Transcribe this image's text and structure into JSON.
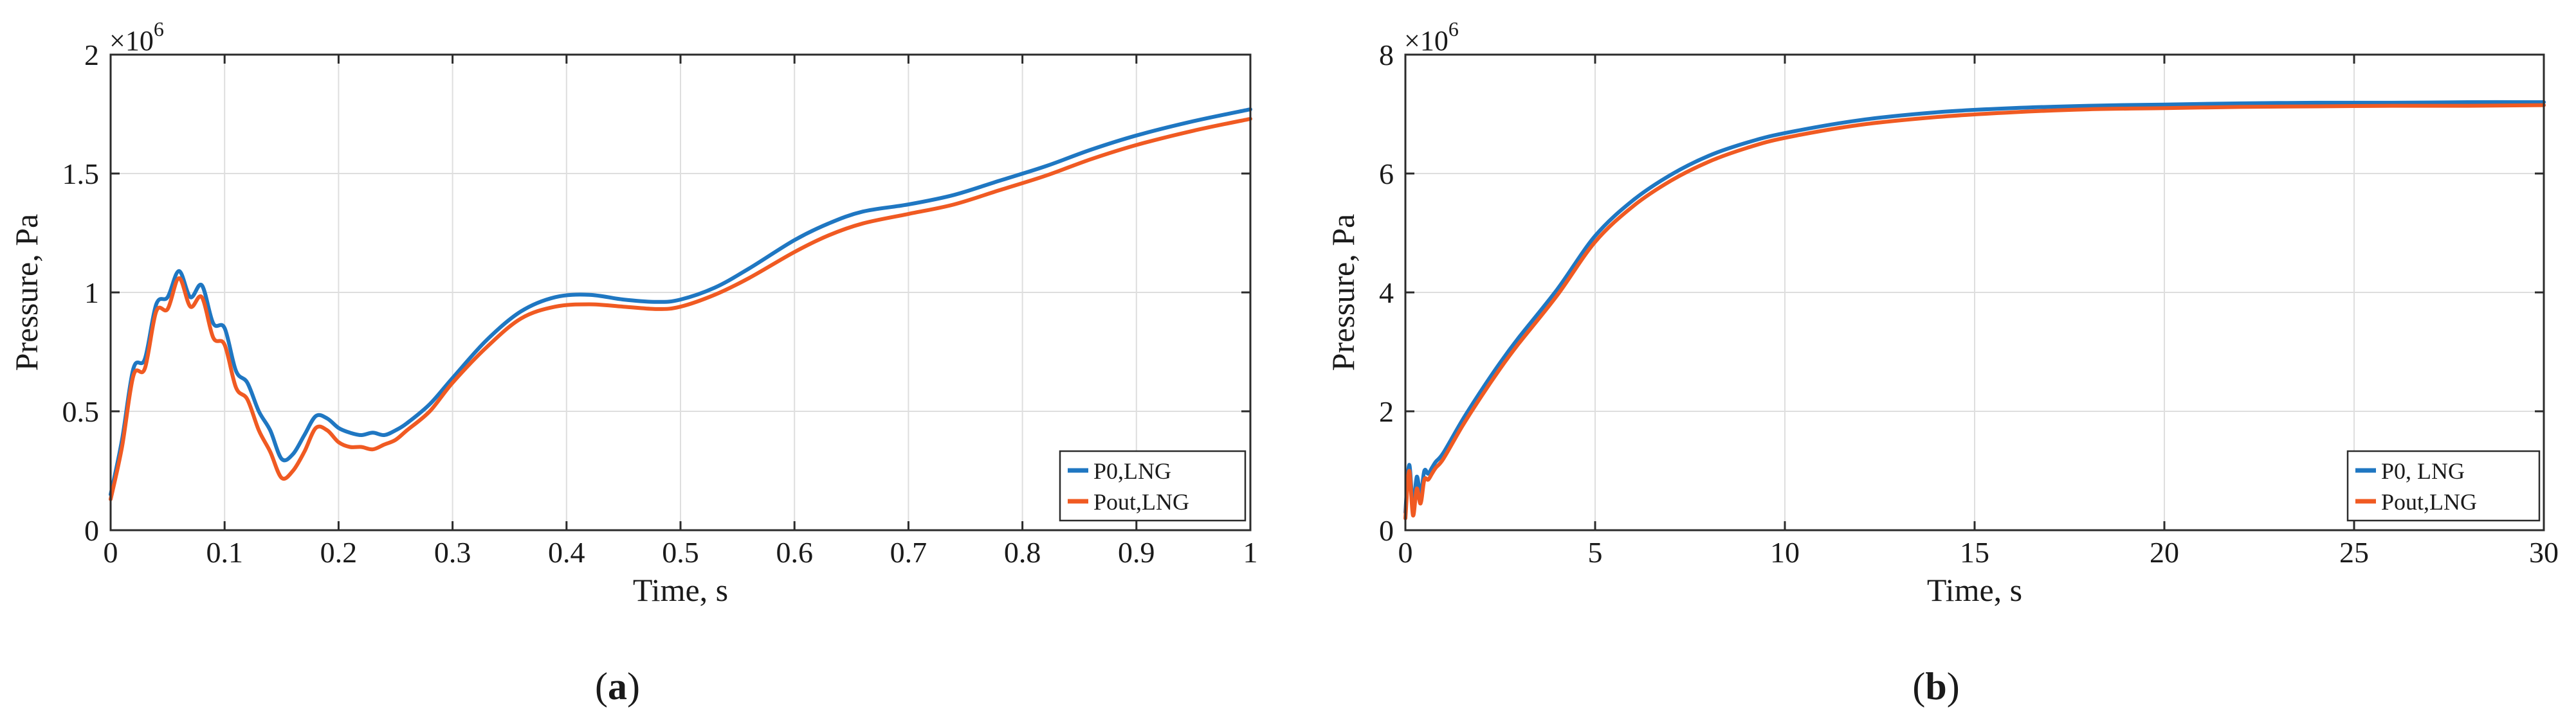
{
  "colors": {
    "series_blue": "#1f77c2",
    "series_orange": "#f05a22",
    "grid": "#dedede"
  },
  "chart_data": [
    {
      "type": "line",
      "panel": "a",
      "caption": {
        "open": "(",
        "letter": "a",
        "close": ")"
      },
      "xlabel": "Time, s",
      "ylabel": "Pressure, Pa",
      "exponent": {
        "base": "×10",
        "power": "6"
      },
      "xlim": [
        0,
        1
      ],
      "ylim": [
        0,
        2
      ],
      "xticks": [
        0,
        0.1,
        0.2,
        0.3,
        0.4,
        0.5,
        0.6,
        0.7,
        0.8,
        0.9,
        1
      ],
      "xtick_labels": [
        "0",
        "0.1",
        "0.2",
        "0.3",
        "0.4",
        "0.5",
        "0.6",
        "0.7",
        "0.8",
        "0.9",
        "1"
      ],
      "yticks": [
        0,
        0.5,
        1,
        1.5,
        2
      ],
      "ytick_labels": [
        "0",
        "0.5",
        "1",
        "1.5",
        "2"
      ],
      "grid": true,
      "legend_position": "bottom-right",
      "series": [
        {
          "name": "P0,LNG",
          "color": "#1f77c2",
          "x": [
            0,
            0.01,
            0.02,
            0.03,
            0.04,
            0.05,
            0.06,
            0.07,
            0.08,
            0.09,
            0.1,
            0.11,
            0.12,
            0.13,
            0.14,
            0.15,
            0.16,
            0.17,
            0.18,
            0.19,
            0.2,
            0.21,
            0.22,
            0.23,
            0.24,
            0.25,
            0.26,
            0.28,
            0.3,
            0.33,
            0.36,
            0.39,
            0.42,
            0.45,
            0.48,
            0.5,
            0.53,
            0.56,
            0.6,
            0.63,
            0.66,
            0.7,
            0.74,
            0.78,
            0.82,
            0.86,
            0.9,
            0.95,
            1.0
          ],
          "y": [
            0.15,
            0.38,
            0.68,
            0.72,
            0.95,
            0.98,
            1.09,
            0.98,
            1.03,
            0.87,
            0.85,
            0.67,
            0.62,
            0.5,
            0.42,
            0.3,
            0.32,
            0.4,
            0.48,
            0.47,
            0.43,
            0.41,
            0.4,
            0.41,
            0.4,
            0.42,
            0.45,
            0.53,
            0.64,
            0.8,
            0.92,
            0.98,
            0.99,
            0.97,
            0.96,
            0.97,
            1.02,
            1.1,
            1.22,
            1.29,
            1.34,
            1.37,
            1.41,
            1.47,
            1.53,
            1.6,
            1.66,
            1.72,
            1.77
          ]
        },
        {
          "name": "Pout,LNG",
          "color": "#f05a22",
          "x": [
            0,
            0.01,
            0.02,
            0.03,
            0.04,
            0.05,
            0.06,
            0.07,
            0.08,
            0.09,
            0.1,
            0.11,
            0.12,
            0.13,
            0.14,
            0.15,
            0.16,
            0.17,
            0.18,
            0.19,
            0.2,
            0.21,
            0.22,
            0.23,
            0.24,
            0.25,
            0.26,
            0.28,
            0.3,
            0.33,
            0.36,
            0.39,
            0.42,
            0.45,
            0.48,
            0.5,
            0.53,
            0.56,
            0.6,
            0.63,
            0.66,
            0.7,
            0.74,
            0.78,
            0.82,
            0.86,
            0.9,
            0.95,
            1.0
          ],
          "y": [
            0.13,
            0.35,
            0.65,
            0.68,
            0.92,
            0.93,
            1.06,
            0.94,
            0.98,
            0.81,
            0.78,
            0.6,
            0.55,
            0.42,
            0.33,
            0.22,
            0.25,
            0.33,
            0.43,
            0.42,
            0.37,
            0.35,
            0.35,
            0.34,
            0.36,
            0.38,
            0.42,
            0.5,
            0.62,
            0.77,
            0.89,
            0.94,
            0.95,
            0.94,
            0.93,
            0.94,
            0.99,
            1.06,
            1.17,
            1.24,
            1.29,
            1.33,
            1.37,
            1.43,
            1.49,
            1.56,
            1.62,
            1.68,
            1.73
          ]
        }
      ]
    },
    {
      "type": "line",
      "panel": "b",
      "caption": {
        "open": "(",
        "letter": "b",
        "close": ")"
      },
      "xlabel": "Time, s",
      "ylabel": "Pressure, Pa",
      "exponent": {
        "base": "×10",
        "power": "6"
      },
      "xlim": [
        0,
        30
      ],
      "ylim": [
        0,
        8
      ],
      "xticks": [
        0,
        5,
        10,
        15,
        20,
        25,
        30
      ],
      "xtick_labels": [
        "0",
        "5",
        "10",
        "15",
        "20",
        "25",
        "30"
      ],
      "yticks": [
        0,
        2,
        4,
        6,
        8
      ],
      "ytick_labels": [
        "0",
        "2",
        "4",
        "6",
        "8"
      ],
      "grid": true,
      "legend_position": "bottom-right",
      "series": [
        {
          "name": "P0, LNG",
          "color": "#1f77c2",
          "x": [
            0,
            0.1,
            0.2,
            0.3,
            0.4,
            0.5,
            0.6,
            0.7,
            0.8,
            1,
            1.5,
            2,
            2.5,
            3,
            4,
            5,
            6,
            7,
            8,
            9,
            10,
            12,
            14,
            16,
            18,
            20,
            22,
            24,
            26,
            28,
            30
          ],
          "y": [
            0.3,
            1.1,
            0.4,
            0.9,
            0.6,
            1.0,
            0.95,
            1.05,
            1.15,
            1.3,
            1.85,
            2.35,
            2.82,
            3.25,
            4.05,
            4.95,
            5.55,
            5.98,
            6.3,
            6.52,
            6.68,
            6.9,
            7.03,
            7.1,
            7.14,
            7.16,
            7.18,
            7.19,
            7.19,
            7.2,
            7.2
          ]
        },
        {
          "name": "Pout,LNG",
          "color": "#f05a22",
          "x": [
            0,
            0.1,
            0.2,
            0.3,
            0.4,
            0.5,
            0.6,
            0.7,
            0.8,
            1,
            1.5,
            2,
            2.5,
            3,
            4,
            5,
            6,
            7,
            8,
            9,
            10,
            12,
            14,
            16,
            18,
            20,
            22,
            24,
            26,
            28,
            30
          ],
          "y": [
            0.2,
            1.0,
            0.25,
            0.7,
            0.45,
            0.85,
            0.85,
            0.95,
            1.05,
            1.2,
            1.75,
            2.25,
            2.72,
            3.15,
            3.95,
            4.85,
            5.45,
            5.88,
            6.2,
            6.43,
            6.6,
            6.82,
            6.95,
            7.03,
            7.08,
            7.1,
            7.12,
            7.13,
            7.14,
            7.14,
            7.15
          ]
        }
      ]
    }
  ]
}
